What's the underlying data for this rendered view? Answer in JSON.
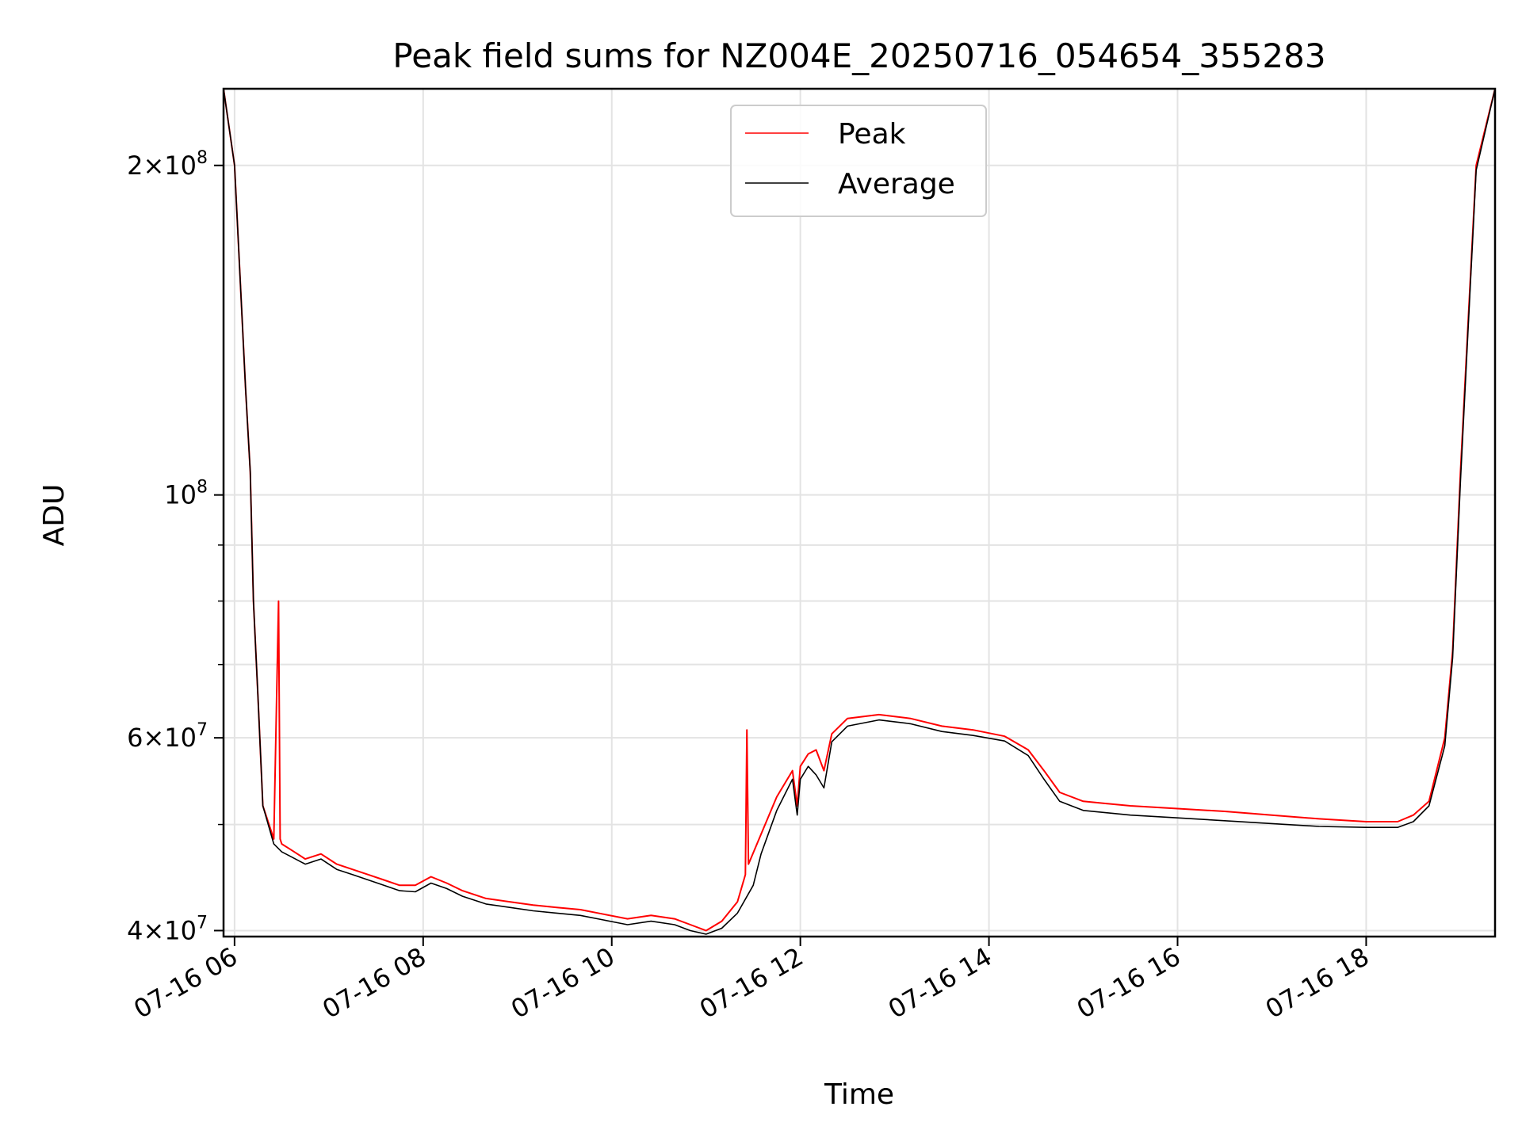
{
  "chart_data": {
    "type": "line",
    "title": "Peak field sums for NZ004E_20250716_054654_355283",
    "xlabel": "Time",
    "ylabel": "ADU",
    "yscale": "log",
    "xlim": [
      "2025-07-16 05:53",
      "2025-07-16 19:22"
    ],
    "ylim": [
      39500000,
      235000000
    ],
    "grid": true,
    "legend": "upper-center",
    "xticks": [
      {
        "value": "2025-07-16 06:00",
        "label": "07-16 06"
      },
      {
        "value": "2025-07-16 08:00",
        "label": "07-16 08"
      },
      {
        "value": "2025-07-16 10:00",
        "label": "07-16 10"
      },
      {
        "value": "2025-07-16 12:00",
        "label": "07-16 12"
      },
      {
        "value": "2025-07-16 14:00",
        "label": "07-16 14"
      },
      {
        "value": "2025-07-16 16:00",
        "label": "07-16 16"
      },
      {
        "value": "2025-07-16 18:00",
        "label": "07-16 18"
      }
    ],
    "yticks": [
      {
        "value": 40000000,
        "base": "4",
        "exp": "7"
      },
      {
        "value": 60000000,
        "base": "6",
        "exp": "7"
      },
      {
        "value": 100000000,
        "base": "10",
        "exp": "8"
      },
      {
        "value": 200000000,
        "base": "2",
        "exp": "8"
      }
    ],
    "series": [
      {
        "name": "Peak",
        "color": "#ff0000",
        "x": [
          "2025-07-16 05:53",
          "2025-07-16 06:00",
          "2025-07-16 06:07",
          "2025-07-16 06:10",
          "2025-07-16 06:12",
          "2025-07-16 06:15",
          "2025-07-16 06:18",
          "2025-07-16 06:25",
          "2025-07-16 06:28",
          "2025-07-16 06:29",
          "2025-07-16 06:30",
          "2025-07-16 06:35",
          "2025-07-16 06:45",
          "2025-07-16 06:55",
          "2025-07-16 07:05",
          "2025-07-16 07:15",
          "2025-07-16 07:25",
          "2025-07-16 07:35",
          "2025-07-16 07:45",
          "2025-07-16 07:55",
          "2025-07-16 08:05",
          "2025-07-16 08:15",
          "2025-07-16 08:25",
          "2025-07-16 08:40",
          "2025-07-16 08:55",
          "2025-07-16 09:10",
          "2025-07-16 09:25",
          "2025-07-16 09:40",
          "2025-07-16 09:55",
          "2025-07-16 10:10",
          "2025-07-16 10:25",
          "2025-07-16 10:40",
          "2025-07-16 10:50",
          "2025-07-16 11:00",
          "2025-07-16 11:10",
          "2025-07-16 11:20",
          "2025-07-16 11:25",
          "2025-07-16 11:26",
          "2025-07-16 11:27",
          "2025-07-16 11:35",
          "2025-07-16 11:45",
          "2025-07-16 11:55",
          "2025-07-16 11:58",
          "2025-07-16 12:00",
          "2025-07-16 12:05",
          "2025-07-16 12:10",
          "2025-07-16 12:15",
          "2025-07-16 12:20",
          "2025-07-16 12:30",
          "2025-07-16 12:50",
          "2025-07-16 13:10",
          "2025-07-16 13:30",
          "2025-07-16 13:50",
          "2025-07-16 14:10",
          "2025-07-16 14:25",
          "2025-07-16 14:35",
          "2025-07-16 14:45",
          "2025-07-16 15:00",
          "2025-07-16 15:30",
          "2025-07-16 16:00",
          "2025-07-16 16:30",
          "2025-07-16 17:00",
          "2025-07-16 17:30",
          "2025-07-16 18:00",
          "2025-07-16 18:20",
          "2025-07-16 18:30",
          "2025-07-16 18:40",
          "2025-07-16 18:50",
          "2025-07-16 18:55",
          "2025-07-16 19:00",
          "2025-07-16 19:05",
          "2025-07-16 19:10",
          "2025-07-16 19:22"
        ],
        "values": [
          235000000,
          200000000,
          125000000,
          105000000,
          80000000,
          65000000,
          52000000,
          48500000,
          80000000,
          48500000,
          48000000,
          47500000,
          46500000,
          47000000,
          46000000,
          45500000,
          45000000,
          44500000,
          44000000,
          44000000,
          44800000,
          44200000,
          43500000,
          42800000,
          42500000,
          42200000,
          42000000,
          41800000,
          41400000,
          41000000,
          41300000,
          41000000,
          40500000,
          40000000,
          40800000,
          42500000,
          45000000,
          61000000,
          46000000,
          49000000,
          53000000,
          56000000,
          52000000,
          56500000,
          58000000,
          58500000,
          56000000,
          60500000,
          62500000,
          63000000,
          62500000,
          61500000,
          61000000,
          60200000,
          58500000,
          56000000,
          53500000,
          52500000,
          52000000,
          51700000,
          51400000,
          51000000,
          50600000,
          50300000,
          50300000,
          51000000,
          52500000,
          60000000,
          72000000,
          105000000,
          145000000,
          200000000,
          235000000
        ]
      },
      {
        "name": "Average",
        "color": "#000000",
        "x": [
          "2025-07-16 05:53",
          "2025-07-16 06:00",
          "2025-07-16 06:07",
          "2025-07-16 06:10",
          "2025-07-16 06:12",
          "2025-07-16 06:15",
          "2025-07-16 06:18",
          "2025-07-16 06:25",
          "2025-07-16 06:30",
          "2025-07-16 06:35",
          "2025-07-16 06:45",
          "2025-07-16 06:55",
          "2025-07-16 07:05",
          "2025-07-16 07:15",
          "2025-07-16 07:25",
          "2025-07-16 07:35",
          "2025-07-16 07:45",
          "2025-07-16 07:55",
          "2025-07-16 08:05",
          "2025-07-16 08:15",
          "2025-07-16 08:25",
          "2025-07-16 08:40",
          "2025-07-16 08:55",
          "2025-07-16 09:10",
          "2025-07-16 09:25",
          "2025-07-16 09:40",
          "2025-07-16 09:55",
          "2025-07-16 10:10",
          "2025-07-16 10:25",
          "2025-07-16 10:40",
          "2025-07-16 10:50",
          "2025-07-16 11:00",
          "2025-07-16 11:10",
          "2025-07-16 11:20",
          "2025-07-16 11:30",
          "2025-07-16 11:35",
          "2025-07-16 11:45",
          "2025-07-16 11:55",
          "2025-07-16 11:58",
          "2025-07-16 12:00",
          "2025-07-16 12:05",
          "2025-07-16 12:10",
          "2025-07-16 12:15",
          "2025-07-16 12:20",
          "2025-07-16 12:30",
          "2025-07-16 12:50",
          "2025-07-16 13:10",
          "2025-07-16 13:30",
          "2025-07-16 13:50",
          "2025-07-16 14:10",
          "2025-07-16 14:25",
          "2025-07-16 14:35",
          "2025-07-16 14:45",
          "2025-07-16 15:00",
          "2025-07-16 15:30",
          "2025-07-16 16:00",
          "2025-07-16 16:30",
          "2025-07-16 17:00",
          "2025-07-16 17:30",
          "2025-07-16 18:00",
          "2025-07-16 18:20",
          "2025-07-16 18:30",
          "2025-07-16 18:40",
          "2025-07-16 18:50",
          "2025-07-16 18:55",
          "2025-07-16 19:00",
          "2025-07-16 19:05",
          "2025-07-16 19:10",
          "2025-07-16 19:22"
        ],
        "values": [
          235000000,
          200000000,
          125000000,
          105000000,
          80000000,
          65000000,
          52000000,
          48000000,
          47200000,
          46800000,
          46000000,
          46500000,
          45500000,
          45000000,
          44500000,
          44000000,
          43500000,
          43400000,
          44200000,
          43700000,
          43000000,
          42300000,
          42000000,
          41700000,
          41500000,
          41300000,
          40900000,
          40500000,
          40800000,
          40500000,
          40000000,
          39700000,
          40200000,
          41500000,
          44000000,
          47000000,
          51500000,
          55000000,
          51000000,
          55000000,
          56500000,
          55500000,
          54000000,
          59500000,
          61500000,
          62300000,
          61800000,
          60800000,
          60300000,
          59600000,
          57800000,
          55000000,
          52500000,
          51500000,
          51000000,
          50700000,
          50400000,
          50100000,
          49800000,
          49700000,
          49700000,
          50300000,
          52000000,
          59000000,
          71000000,
          103000000,
          143000000,
          198000000,
          235000000
        ]
      }
    ]
  }
}
